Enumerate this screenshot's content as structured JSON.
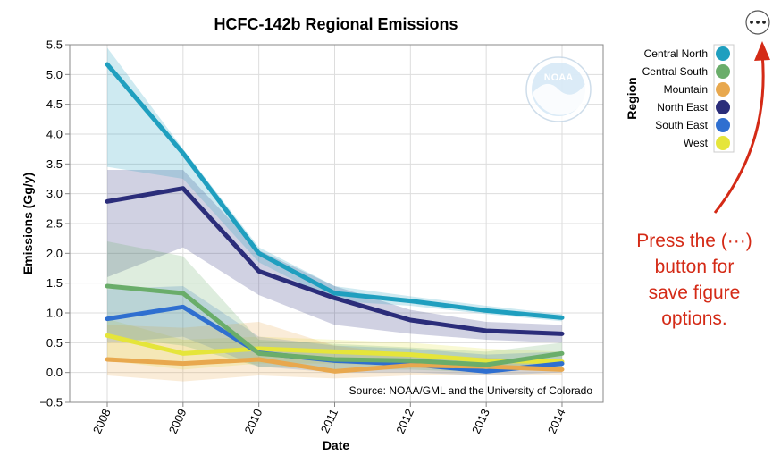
{
  "chart_data": {
    "type": "line",
    "title": "HCFC-142b Regional Emissions",
    "xlabel": "Date",
    "ylabel": "Emissions (Gg/y)",
    "x": [
      "2008",
      "2009",
      "2010",
      "2011",
      "2012",
      "2013",
      "2014"
    ],
    "ylim": [
      -0.5,
      5.5
    ],
    "yticks": [
      "−0.5",
      "0.0",
      "0.5",
      "1.0",
      "1.5",
      "2.0",
      "2.5",
      "3.0",
      "3.5",
      "4.0",
      "4.5",
      "5.0",
      "5.5"
    ],
    "grid": true,
    "legend_title": "Region",
    "legend_position": "right",
    "series": [
      {
        "name": "Central North",
        "color": "#1f9fbf",
        "values": [
          5.17,
          3.68,
          2.0,
          1.33,
          1.2,
          1.04,
          0.92
        ],
        "upper": [
          5.45,
          3.75,
          2.1,
          1.45,
          1.28,
          1.12,
          0.98
        ],
        "lower": [
          3.45,
          3.25,
          1.85,
          1.2,
          1.12,
          0.98,
          0.86
        ]
      },
      {
        "name": "Central South",
        "color": "#6aad6a",
        "values": [
          1.45,
          1.33,
          0.32,
          0.22,
          0.2,
          0.13,
          0.32
        ],
        "upper": [
          2.2,
          1.95,
          0.55,
          0.48,
          0.42,
          0.35,
          0.5
        ],
        "lower": [
          0.6,
          0.45,
          0.1,
          0.05,
          0.05,
          0.0,
          0.1
        ]
      },
      {
        "name": "Mountain",
        "color": "#e8a84e",
        "values": [
          0.22,
          0.15,
          0.22,
          0.02,
          0.12,
          0.1,
          0.05
        ],
        "upper": [
          0.8,
          0.75,
          0.85,
          0.45,
          0.3,
          0.25,
          0.2
        ],
        "lower": [
          -0.05,
          -0.15,
          -0.05,
          -0.1,
          -0.05,
          -0.05,
          -0.05
        ]
      },
      {
        "name": "North East",
        "color": "#2b2d7a",
        "values": [
          2.87,
          3.09,
          1.7,
          1.25,
          0.88,
          0.7,
          0.65
        ],
        "upper": [
          3.4,
          3.4,
          2.05,
          1.45,
          1.05,
          0.85,
          0.8
        ],
        "lower": [
          1.6,
          2.1,
          1.3,
          0.8,
          0.65,
          0.55,
          0.5
        ]
      },
      {
        "name": "South East",
        "color": "#2f6fd0",
        "values": [
          0.9,
          1.1,
          0.33,
          0.2,
          0.14,
          0.02,
          0.15
        ],
        "upper": [
          1.4,
          1.45,
          0.6,
          0.45,
          0.4,
          0.3,
          0.35
        ],
        "lower": [
          0.5,
          0.6,
          0.1,
          0.0,
          0.0,
          -0.05,
          0.0
        ]
      },
      {
        "name": "West",
        "color": "#e5e53a",
        "values": [
          0.62,
          0.32,
          0.4,
          0.35,
          0.3,
          0.2,
          0.18
        ],
        "upper": [
          0.9,
          0.55,
          0.6,
          0.55,
          0.5,
          0.4,
          0.35
        ],
        "lower": [
          0.2,
          0.05,
          0.15,
          0.15,
          0.1,
          0.05,
          0.05
        ]
      }
    ],
    "source_text": "Source: NOAA/GML and the University of Colorado",
    "logo_text": "NOAA"
  },
  "menu": {
    "button_label": "•••"
  },
  "annotation": {
    "lines": [
      "Press the (···)",
      "button for",
      "save figure",
      "options."
    ],
    "color": "#d42a16"
  }
}
